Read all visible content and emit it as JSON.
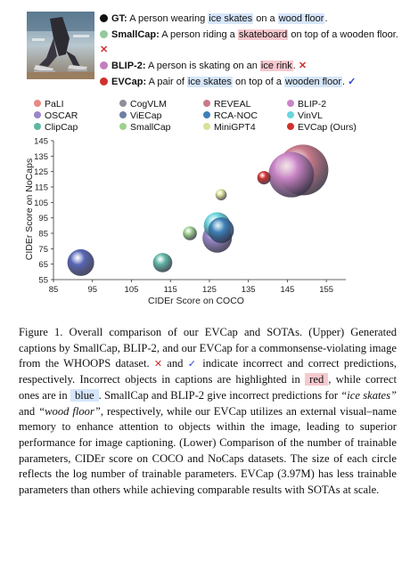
{
  "captions": {
    "gt": {
      "label": "GT:",
      "pre": "A person wearing ",
      "hl1": "ice skates",
      "mid": " on a ",
      "hl2": "wood floor",
      "post": "."
    },
    "smallcap": {
      "label": "SmallCap:",
      "pre": "A person riding a ",
      "hl1": "skateboard",
      "post": " on top of a wooden floor.",
      "mark": "✕"
    },
    "blip2": {
      "label": "BLIP-2:",
      "pre": "A person is skating on an ",
      "hl1": "ice rink",
      "post": ".",
      "mark": "✕"
    },
    "evcap": {
      "label": "EVCap:",
      "pre": "A pair of ",
      "hl1": "ice skates",
      "mid": " on top of a ",
      "hl2": "wooden floor",
      "post": ".",
      "mark": "✓"
    }
  },
  "colors": {
    "gt": "#111111",
    "smallcap": "#93c99b",
    "blip2": "#c37fc0",
    "evcap": "#d0312d"
  },
  "legend": [
    {
      "name": "PaLI",
      "color": "#e98986"
    },
    {
      "name": "CogVLM",
      "color": "#8f8f9c"
    },
    {
      "name": "REVEAL",
      "color": "#c97a8a"
    },
    {
      "name": "BLIP-2",
      "color": "#c985c6"
    },
    {
      "name": "OSCAR",
      "color": "#9a86c9"
    },
    {
      "name": "ViECap",
      "color": "#6e7fa4"
    },
    {
      "name": "RCA-NOC",
      "color": "#3f80b8"
    },
    {
      "name": "VinVL",
      "color": "#6ad5dc"
    },
    {
      "name": "ClipCap",
      "color": "#5fb7a4"
    },
    {
      "name": "SmallCap",
      "color": "#9fd08f"
    },
    {
      "name": "MiniGPT4",
      "color": "#dbe097"
    },
    {
      "name": "EVCap (Ours)",
      "color": "#d0312d"
    }
  ],
  "chart_data": {
    "type": "scatter",
    "xlabel": "CIDEr Score on COCO",
    "ylabel": "CIDEr Score on NoCaps",
    "xlim": [
      85,
      160
    ],
    "ylim": [
      55,
      145
    ],
    "xticks": [
      85,
      95,
      105,
      115,
      125,
      135,
      145,
      155
    ],
    "yticks": [
      55,
      65,
      75,
      85,
      95,
      105,
      115,
      125,
      135,
      145
    ],
    "points": [
      {
        "name": "OSCAR",
        "x": 92,
        "y": 66,
        "size": 1.0,
        "color": "#5966b6"
      },
      {
        "name": "ClipCap",
        "x": 113,
        "y": 66,
        "size": 0.72,
        "color": "#5fb7a4"
      },
      {
        "name": "SmallCap",
        "x": 120,
        "y": 85,
        "size": 0.52,
        "color": "#9fd08f"
      },
      {
        "name": "MiniGPT4",
        "x": 128,
        "y": 110,
        "size": 0.42,
        "color": "#dbe097"
      },
      {
        "name": "VinVL",
        "x": 127,
        "y": 90,
        "size": 1.0,
        "color": "#6ad5dc"
      },
      {
        "name": "BLIP-2",
        "x": 127,
        "y": 82,
        "size": 1.1,
        "color": "#9a86c9"
      },
      {
        "name": "RCA-NOC",
        "x": 128,
        "y": 87,
        "size": 0.96,
        "color": "#3f80b8"
      },
      {
        "name": "EVCap (Ours)",
        "x": 139,
        "y": 121,
        "size": 0.5,
        "color": "#d0312d"
      },
      {
        "name": "CogVLM",
        "x": 149,
        "y": 126,
        "size": 1.9,
        "color": "#c97a8a"
      },
      {
        "name": "PaLI",
        "x": 146,
        "y": 123,
        "size": 1.7,
        "color": "#c985c6"
      }
    ]
  },
  "figure_caption": {
    "p1": "Figure 1. Overall comparison of our EVCap and SOTAs. (Upper) Generated captions by SmallCap, BLIP-2, and our EVCap for a commonsense-violating image from the WHOOPS dataset.",
    "xmark": "✕",
    "and": " and",
    "vmark": "✓",
    "p2": " indicate incorrect and correct predictions, respectively. Incorrect objects in captions are highlighted in ",
    "red": "red",
    "p3": ", while correct ones are in ",
    "blue": "blue",
    "p4": ". SmallCap and BLIP-2 give incorrect predictions for ",
    "q1": "“ice skates”",
    "p5": " and ",
    "q2": "“wood floor”",
    "p6": ", respectively, while our EVCap utilizes an external visual–name memory to enhance attention to objects within the image, leading to superior performance for image captioning. (Lower) Comparison of the number of trainable parameters, CIDEr score on COCO and NoCaps datasets. The size of each circle reflects the log number of trainable parameters. EVCap (3.97M) has less trainable parameters than others while achieving comparable results with SOTAs at scale."
  }
}
